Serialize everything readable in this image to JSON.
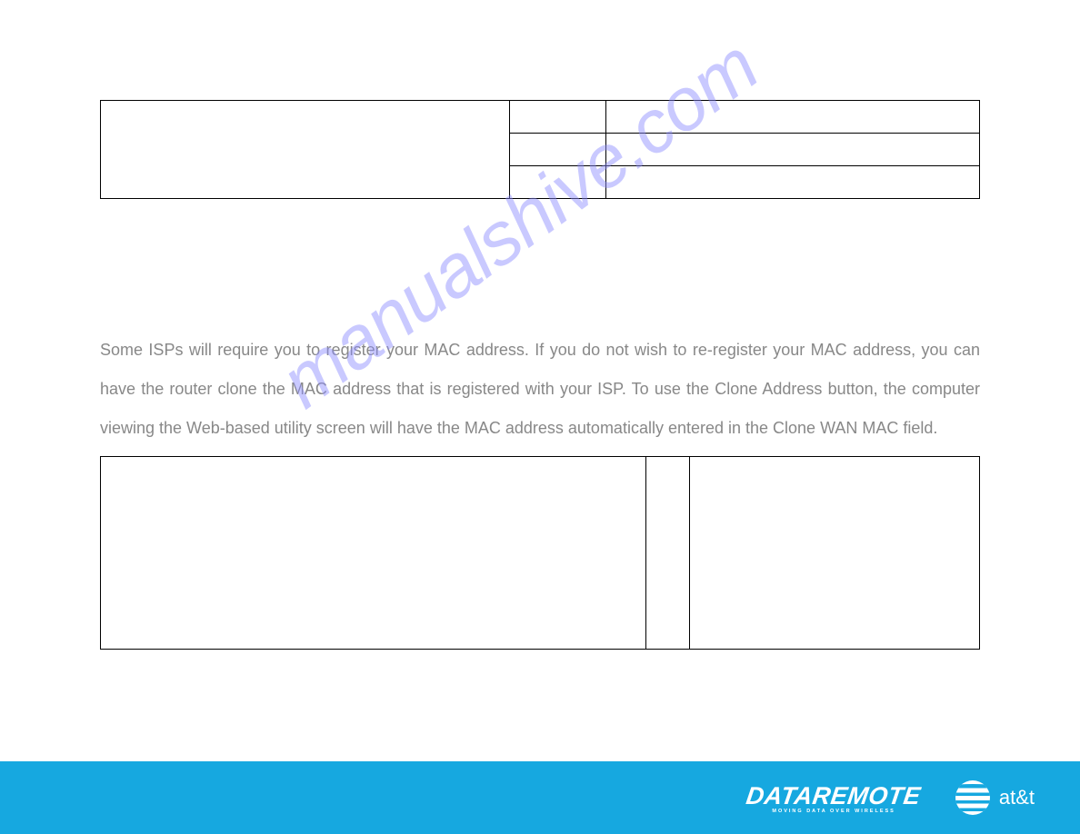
{
  "watermark": {
    "text": "manualshive.com",
    "color": "#8a8aff"
  },
  "bodyText": "Some ISPs will require you to register your MAC address. If you do not wish to re-register your MAC address, you can have the router clone the MAC address that is registered with your ISP. To use the Clone Address button, the computer viewing the Web-based utility screen will have the MAC address automatically entered in the Clone WAN MAC field.",
  "footer": {
    "brand": "DATAREMOTE",
    "tagline": "MOVING DATA OVER WIRELESS",
    "partner": "at&t",
    "background": "#16a8e0"
  },
  "colors": {
    "textGray": "#888888",
    "borderBlack": "#000000",
    "footerBlue": "#16a8e0",
    "white": "#ffffff"
  }
}
